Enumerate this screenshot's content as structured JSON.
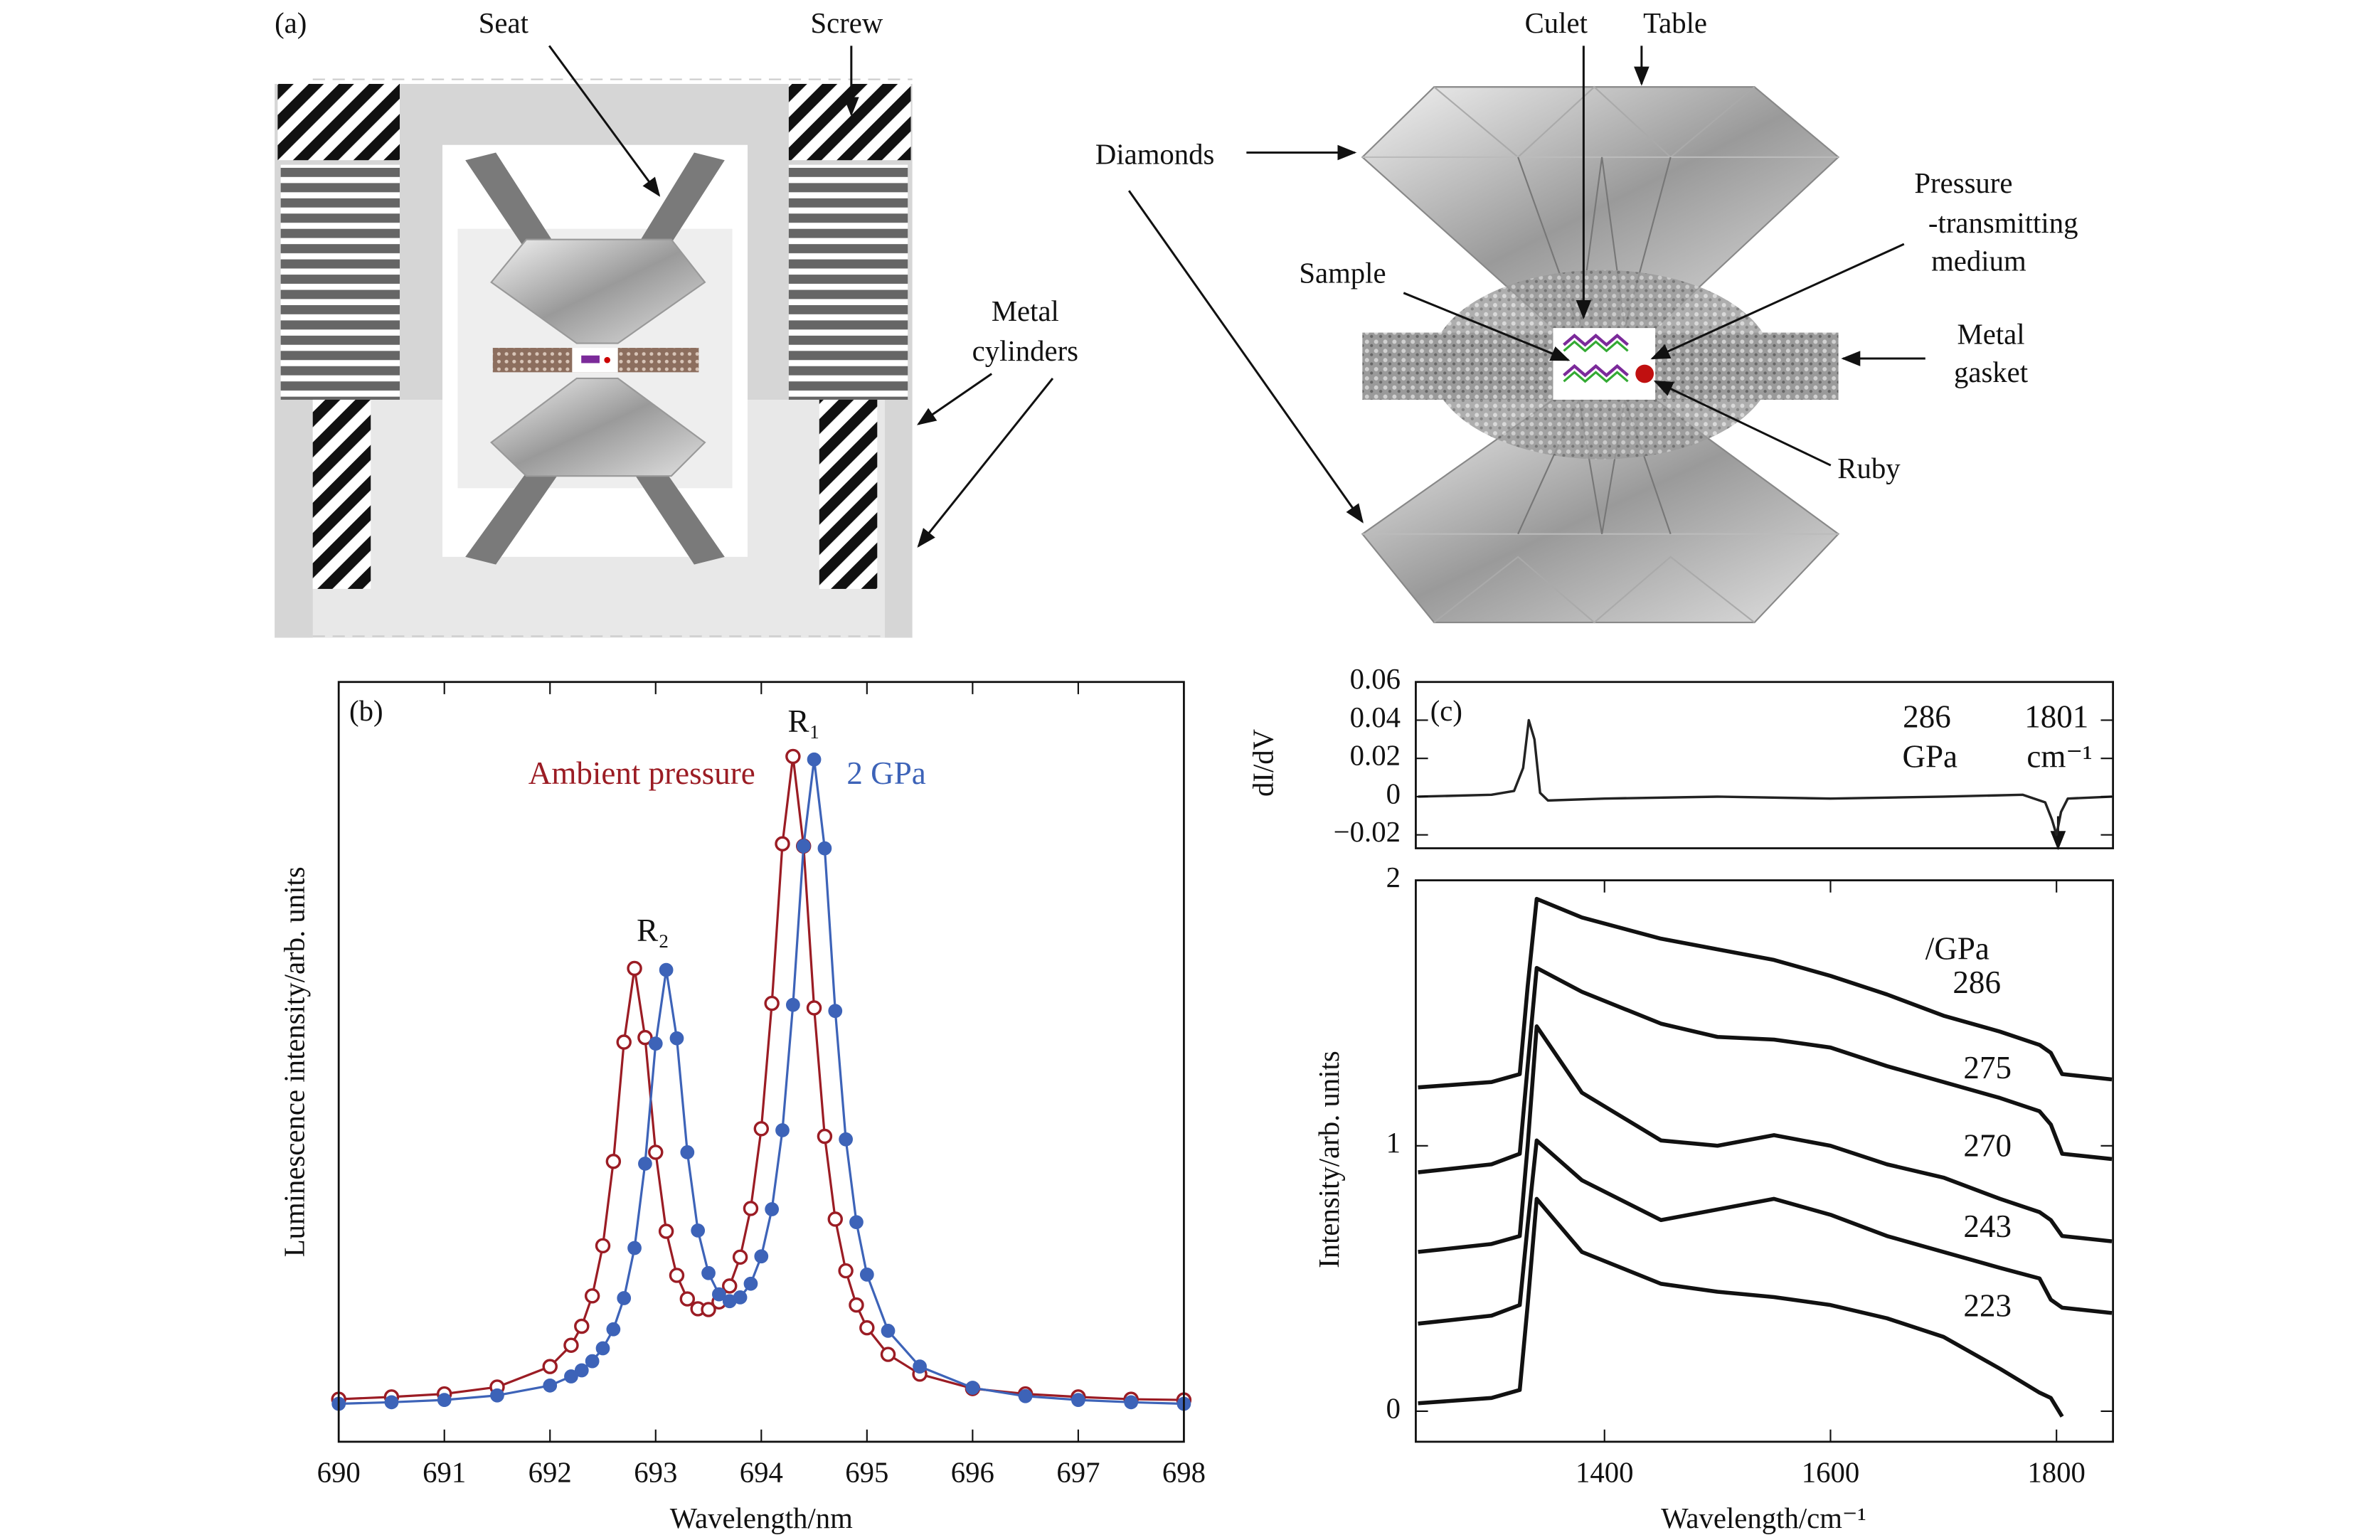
{
  "diagram": {
    "panel_label": "(a)",
    "labels": {
      "seat": "Seat",
      "screw": "Screw",
      "metal_cylinders": [
        "Metal",
        "cylinders"
      ],
      "culet": "Culet",
      "table": "Table",
      "diamonds": "Diamonds",
      "pressure_medium": [
        "Pressure",
        "-transmitting",
        "medium"
      ],
      "sample": "Sample",
      "metal_gasket": [
        "Metal",
        "gasket"
      ],
      "ruby": "Ruby"
    }
  },
  "chart_data": [
    {
      "type": "line",
      "label": "(b)",
      "xlabel": "Wavelength/nm",
      "ylabel": "Luminescence intensity/arb. units",
      "annotations": [
        "R₂",
        "R₁"
      ],
      "x": [
        690,
        690.5,
        691,
        691.5,
        692,
        692.2,
        692.3,
        692.4,
        692.5,
        692.6,
        692.7,
        692.8,
        692.9,
        693,
        693.1,
        693.2,
        693.3,
        693.4,
        693.5,
        693.6,
        693.7,
        693.8,
        693.9,
        694,
        694.1,
        694.2,
        694.3,
        694.4,
        694.5,
        694.6,
        694.7,
        694.8,
        694.9,
        695,
        695.2,
        695.5,
        696,
        696.5,
        697,
        697.5,
        698
      ],
      "xlim": [
        690,
        698
      ],
      "xticks": [
        690,
        691,
        692,
        693,
        694,
        695,
        696,
        697,
        698
      ],
      "ylim": [
        0,
        1
      ],
      "series": [
        {
          "name": "Ambient pressure",
          "color": "#9b1c24",
          "marker": "open-circle",
          "values": [
            0.056,
            0.059,
            0.063,
            0.072,
            0.099,
            0.127,
            0.152,
            0.192,
            0.258,
            0.369,
            0.526,
            0.623,
            0.532,
            0.381,
            0.277,
            0.219,
            0.188,
            0.175,
            0.174,
            0.184,
            0.205,
            0.243,
            0.307,
            0.412,
            0.577,
            0.787,
            0.902,
            0.784,
            0.571,
            0.402,
            0.293,
            0.225,
            0.18,
            0.15,
            0.115,
            0.089,
            0.07,
            0.063,
            0.059,
            0.056,
            0.055
          ]
        },
        {
          "name": "2 GPa",
          "color": "#3d63b8",
          "marker": "dot",
          "values": [
            0.05,
            0.052,
            0.055,
            0.061,
            0.074,
            0.086,
            0.094,
            0.106,
            0.123,
            0.148,
            0.189,
            0.255,
            0.366,
            0.524,
            0.621,
            0.531,
            0.381,
            0.278,
            0.222,
            0.194,
            0.185,
            0.19,
            0.208,
            0.244,
            0.306,
            0.41,
            0.575,
            0.784,
            0.898,
            0.781,
            0.567,
            0.398,
            0.289,
            0.22,
            0.146,
            0.099,
            0.071,
            0.06,
            0.055,
            0.052,
            0.05
          ]
        }
      ]
    },
    {
      "type": "line",
      "label": "(c)",
      "ylabel": "dI/dV",
      "annotations": [
        "286",
        "GPa",
        "1801",
        "cm⁻¹"
      ],
      "x": [
        1235,
        1300,
        1320,
        1328,
        1333,
        1338,
        1343,
        1350,
        1400,
        1500,
        1600,
        1700,
        1770,
        1790,
        1796,
        1800,
        1804,
        1810,
        1849
      ],
      "xlim": [
        1233,
        1850
      ],
      "ylim": [
        -0.027,
        0.06
      ],
      "yticks": [
        0.06,
        0.04,
        0.02,
        0,
        {
          "value": -0.02,
          "label": "−0.02"
        }
      ],
      "series": [
        {
          "color": "#222222",
          "values": [
            0,
            0.001,
            0.003,
            0.015,
            0.04,
            0.03,
            0.002,
            -0.002,
            -0.001,
            0,
            -0.001,
            0,
            0.001,
            -0.003,
            -0.012,
            -0.02,
            -0.008,
            -0.001,
            0
          ]
        }
      ]
    },
    {
      "type": "line",
      "xlabel": "Wavelength/cm⁻¹",
      "ylabel": "Intensity/arb. units",
      "annotations": [
        "/GPa"
      ],
      "x": [
        1235,
        1300,
        1325,
        1332,
        1340,
        1380,
        1450,
        1500,
        1550,
        1600,
        1650,
        1700,
        1750,
        1785,
        1795,
        1805,
        1849
      ],
      "xlim": [
        1233,
        1850
      ],
      "xticks": [
        1400,
        1600,
        1800
      ],
      "ylim": [
        -0.115,
        2
      ],
      "yticks": [
        0,
        1,
        2
      ],
      "series": [
        {
          "name": "286",
          "color": "#111111",
          "values": [
            1.22,
            1.24,
            1.27,
            1.6,
            1.93,
            1.86,
            1.78,
            1.74,
            1.7,
            1.64,
            1.57,
            1.49,
            1.43,
            1.38,
            1.35,
            1.27,
            1.25
          ]
        },
        {
          "name": "275",
          "color": "#111111",
          "values": [
            0.9,
            0.93,
            0.97,
            1.3,
            1.67,
            1.58,
            1.46,
            1.41,
            1.4,
            1.37,
            1.3,
            1.24,
            1.18,
            1.13,
            1.08,
            0.97,
            0.95
          ]
        },
        {
          "name": "270",
          "color": "#111111",
          "values": [
            0.6,
            0.63,
            0.66,
            1.0,
            1.45,
            1.2,
            1.02,
            1.0,
            1.04,
            1.0,
            0.93,
            0.88,
            0.8,
            0.75,
            0.72,
            0.66,
            0.64
          ]
        },
        {
          "name": "243",
          "color": "#111111",
          "values": [
            0.33,
            0.36,
            0.4,
            0.7,
            1.02,
            0.87,
            0.72,
            0.76,
            0.8,
            0.74,
            0.66,
            0.6,
            0.54,
            0.5,
            0.42,
            0.39,
            0.37
          ]
        },
        {
          "name": "223",
          "color": "#111111",
          "values": [
            0.03,
            0.05,
            0.08,
            0.4,
            0.8,
            0.6,
            0.48,
            0.45,
            0.43,
            0.4,
            0.35,
            0.28,
            0.16,
            0.07,
            0.05,
            -0.02,
            null
          ]
        }
      ]
    }
  ]
}
